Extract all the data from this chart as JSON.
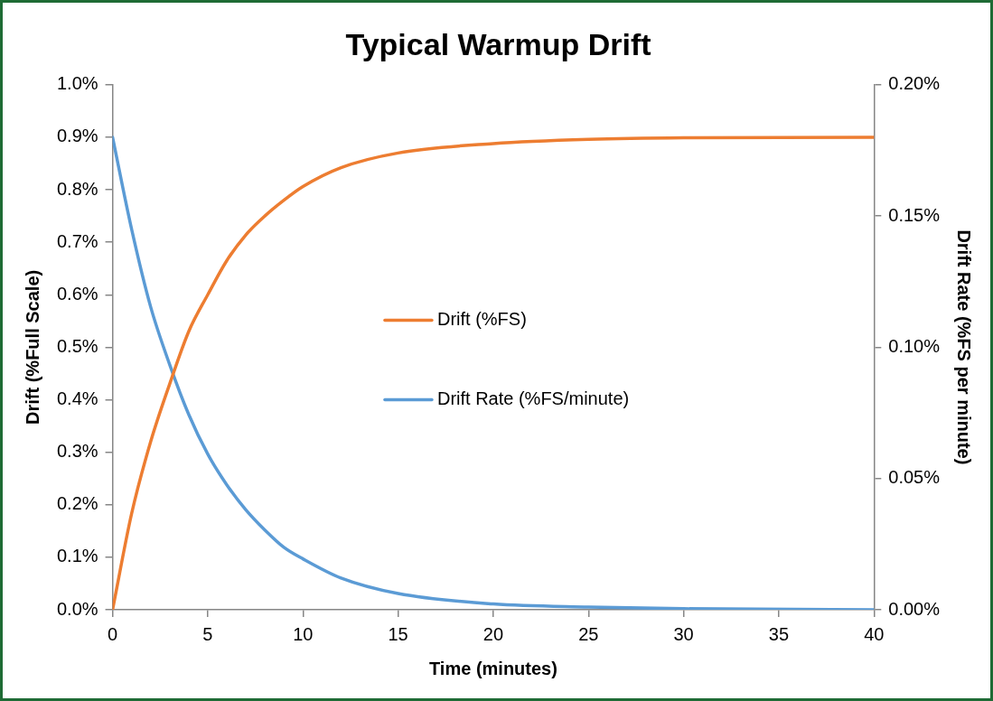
{
  "chart_data": {
    "type": "line",
    "title": "Typical Warmup Drift",
    "xlabel": "Time (minutes)",
    "ylabel": "Drift (%Full Scale)",
    "y2label": "Drift Rate (%FS per minute)",
    "x": [
      0,
      1,
      2,
      3,
      4,
      5,
      6,
      7,
      8,
      9,
      10,
      12,
      15,
      20,
      25,
      30,
      40
    ],
    "series": [
      {
        "name": "Drift (%FS)",
        "color": "#ed7d31",
        "values": [
          0,
          0.183,
          0.32,
          0.43,
          0.53,
          0.6,
          0.665,
          0.714,
          0.75,
          0.78,
          0.806,
          0.842,
          0.87,
          0.888,
          0.896,
          0.899,
          0.9
        ]
      },
      {
        "name": "Drift Rate (%FS/minute)",
        "color": "#5b9bd5",
        "axis": "y2",
        "values": [
          0.18,
          0.145,
          0.1154,
          0.0934,
          0.0744,
          0.0593,
          0.0476,
          0.0381,
          0.0304,
          0.0238,
          0.0194,
          0.0121,
          0.0062,
          0.0022,
          0.001,
          0.0004,
          0
        ]
      }
    ],
    "xlim": [
      0,
      40
    ],
    "xticks": [
      0,
      5,
      10,
      15,
      20,
      25,
      30,
      35,
      40
    ],
    "ylim": [
      0,
      1
    ],
    "yticks": [
      {
        "value": 0,
        "label": "0.0%"
      },
      {
        "value": 0.1,
        "label": "0.1%"
      },
      {
        "value": 0.2,
        "label": "0.2%"
      },
      {
        "value": 0.3,
        "label": "0.3%"
      },
      {
        "value": 0.4,
        "label": "0.4%"
      },
      {
        "value": 0.5,
        "label": "0.5%"
      },
      {
        "value": 0.6,
        "label": "0.6%"
      },
      {
        "value": 0.7,
        "label": "0.7%"
      },
      {
        "value": 0.8,
        "label": "0.8%"
      },
      {
        "value": 0.9,
        "label": "0.9%"
      },
      {
        "value": 1,
        "label": "1.0%"
      }
    ],
    "y2lim": [
      0,
      0.2
    ],
    "y2ticks": [
      {
        "value": 0,
        "label": "0.00%"
      },
      {
        "value": 0.05,
        "label": "0.05%"
      },
      {
        "value": 0.1,
        "label": "0.10%"
      },
      {
        "value": 0.15,
        "label": "0.15%"
      },
      {
        "value": 0.2,
        "label": "0.20%"
      }
    ],
    "grid": false,
    "legend": "center",
    "marker": "none",
    "line_style": "solid"
  }
}
